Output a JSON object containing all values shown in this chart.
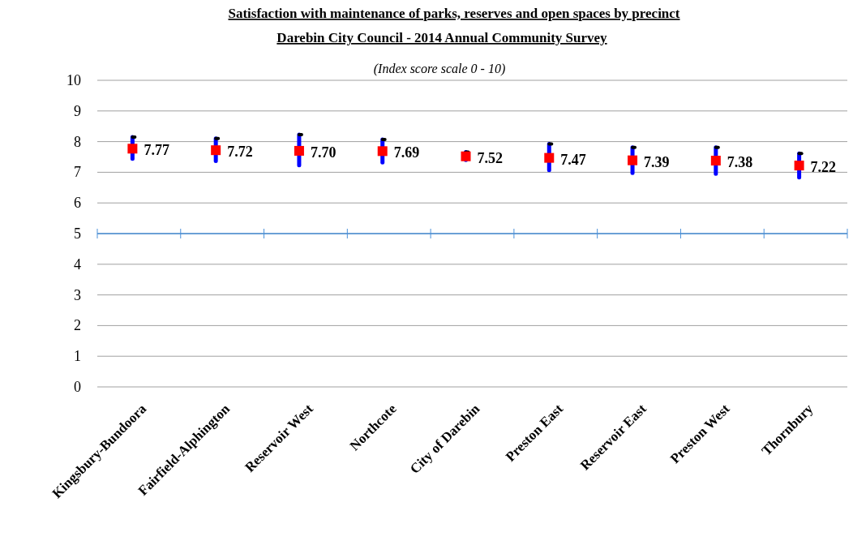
{
  "chart_data": {
    "type": "scatter",
    "title": "Satisfaction with  maintenance of parks, reserves and open spaces by precinct",
    "subtitle": "Darebin City Council - 2014 Annual Community Survey",
    "annotations": [
      "(Index score scale 0 - 10)"
    ],
    "categories": [
      "Kingsbury-Bundoora",
      "Fairfield-Alphington",
      "Reservoir West",
      "Northcote",
      "City of Darebin",
      "Preston East",
      "Reservoir East",
      "Preston West",
      "Thornbury"
    ],
    "series": [
      {
        "color": "#ff0000",
        "values": [
          7.77,
          7.72,
          7.7,
          7.69,
          7.52,
          7.47,
          7.39,
          7.38,
          7.22
        ],
        "value_labels": [
          "7.77",
          "7.72",
          "7.70",
          "7.69",
          "7.52",
          "7.47",
          "7.39",
          "7.38",
          "7.22"
        ],
        "errors": [
          [
            7.44,
            8.15
          ],
          [
            7.37,
            8.1
          ],
          [
            7.23,
            8.23
          ],
          [
            7.32,
            8.07
          ],
          [
            7.4,
            7.66
          ],
          [
            7.07,
            7.92
          ],
          [
            6.98,
            7.81
          ],
          [
            6.95,
            7.81
          ],
          [
            6.83,
            7.61
          ]
        ]
      }
    ],
    "ylim": [
      0,
      10
    ],
    "yticks": [
      0,
      1,
      2,
      3,
      4,
      5,
      6,
      7,
      8,
      9,
      10
    ],
    "grid": "y",
    "marker": "square",
    "ref_lines": [
      {
        "axis": "y",
        "value": 5,
        "color": "#4a90d9"
      }
    ]
  }
}
